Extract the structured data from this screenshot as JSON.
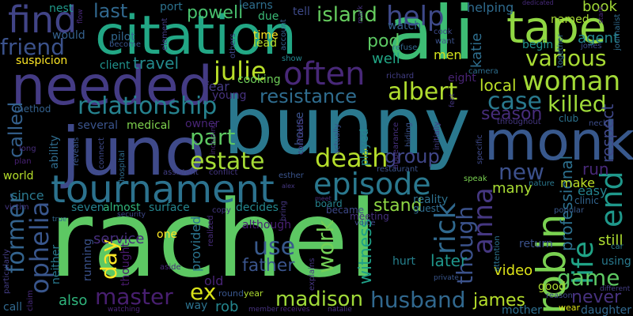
{
  "words": [
    {
      "text": "rachel",
      "color": "#5dc863"
    },
    {
      "text": "bunny",
      "color": "#2a788e"
    },
    {
      "text": "ali",
      "color": "#3dbc74"
    },
    {
      "text": "citation",
      "color": "#22a785"
    },
    {
      "text": "needed",
      "color": "#443b84"
    },
    {
      "text": "juno",
      "color": "#3f4a8a"
    },
    {
      "text": "monk",
      "color": "#38588c"
    },
    {
      "text": "tape",
      "color": "#90d743"
    },
    {
      "text": "tournament",
      "color": "#2c728e"
    },
    {
      "text": "robin",
      "color": "#7ad151"
    },
    {
      "text": "episode",
      "color": "#2a788e"
    },
    {
      "text": "woman",
      "color": "#a2da37"
    },
    {
      "text": "often",
      "color": "#482878"
    },
    {
      "text": "relationship",
      "color": "#26828e"
    },
    {
      "text": "find",
      "color": "#414487"
    },
    {
      "text": "death",
      "color": "#b5de2b"
    },
    {
      "text": "estate",
      "color": "#a5db36"
    },
    {
      "text": "end",
      "color": "#1f988b"
    },
    {
      "text": "life",
      "color": "#20a386"
    },
    {
      "text": "husband",
      "color": "#31688e"
    },
    {
      "text": "madison",
      "color": "#a0da39"
    },
    {
      "text": "master",
      "color": "#481f70"
    },
    {
      "text": "ophelia",
      "color": "#39568c"
    },
    {
      "text": "former",
      "color": "#33638d"
    },
    {
      "text": "killed",
      "color": "#9fda3a"
    },
    {
      "text": "case",
      "color": "#29798e"
    },
    {
      "text": "game",
      "color": "#5ec962"
    },
    {
      "text": "julie",
      "color": "#b8de29"
    },
    {
      "text": "albert",
      "color": "#b0dd2f"
    },
    {
      "text": "various",
      "color": "#a8db34"
    },
    {
      "text": "friend",
      "color": "#3b528b"
    },
    {
      "text": "resistance",
      "color": "#2f6c8e"
    },
    {
      "text": "anna",
      "color": "#453781"
    },
    {
      "text": "rick",
      "color": "#30698e"
    },
    {
      "text": "island",
      "color": "#65cb5e"
    },
    {
      "text": "help",
      "color": "#3e4989"
    },
    {
      "text": "part",
      "color": "#5ec962"
    },
    {
      "text": "group",
      "color": "#404688"
    },
    {
      "text": "new",
      "color": "#3c508b"
    },
    {
      "text": "work",
      "color": "#73d056"
    },
    {
      "text": "use",
      "color": "#38598c"
    },
    {
      "text": "father",
      "color": "#3a548c"
    },
    {
      "text": "day",
      "color": "#fde725"
    },
    {
      "text": "james",
      "color": "#b5de2b"
    },
    {
      "text": "ex",
      "color": "#d8e219"
    },
    {
      "text": "though",
      "color": "#3b528b"
    },
    {
      "text": "called",
      "color": "#34608d"
    },
    {
      "text": "witness",
      "color": "#1fa088"
    },
    {
      "text": "never",
      "color": "#46317e"
    },
    {
      "text": "professional",
      "color": "#2d708e"
    },
    {
      "text": "respect",
      "color": "#3f4889"
    },
    {
      "text": "season",
      "color": "#472d7b"
    },
    {
      "text": "last",
      "color": "#31688e"
    },
    {
      "text": "powell",
      "color": "#48c16e"
    },
    {
      "text": "travel",
      "color": "#238a8d"
    },
    {
      "text": "local",
      "color": "#bade28"
    },
    {
      "text": "run",
      "color": "#482979"
    },
    {
      "text": "stand",
      "color": "#8fd744"
    },
    {
      "text": "later",
      "color": "#1f968b"
    },
    {
      "text": "many",
      "color": "#a8db34"
    },
    {
      "text": "video",
      "color": "#dde318"
    },
    {
      "text": "still",
      "color": "#addc30"
    },
    {
      "text": "service",
      "color": "#472e7c"
    },
    {
      "text": "also",
      "color": "#2fb47c"
    },
    {
      "text": "rob",
      "color": "#24868e"
    },
    {
      "text": "old",
      "color": "#482475"
    },
    {
      "text": "pod",
      "color": "#5cc863"
    },
    {
      "text": "well",
      "color": "#21a685"
    },
    {
      "text": "men",
      "color": "#d2e21b"
    },
    {
      "text": "book",
      "color": "#a2da37"
    },
    {
      "text": "agent",
      "color": "#24878e"
    },
    {
      "text": "katie",
      "color": "#2e6e8e"
    },
    {
      "text": "helping",
      "color": "#2f6b8e"
    },
    {
      "text": "would",
      "color": "#34618d"
    },
    {
      "text": "pilot",
      "color": "#31678e"
    },
    {
      "text": "suspicion",
      "color": "#fde725"
    },
    {
      "text": "client",
      "color": "#20928c"
    },
    {
      "text": "cooking",
      "color": "#6ece58"
    },
    {
      "text": "young",
      "color": "#46327e"
    },
    {
      "text": "fear",
      "color": "#443a83"
    },
    {
      "text": "eight",
      "color": "#482374"
    },
    {
      "text": "time",
      "color": "#fde725"
    },
    {
      "text": "lead",
      "color": "#bade28"
    },
    {
      "text": "due",
      "color": "#3aba76"
    },
    {
      "text": "learns",
      "color": "#2e6e8e"
    },
    {
      "text": "nest",
      "color": "#1f9a8a"
    },
    {
      "text": "port",
      "color": "#2c728e"
    },
    {
      "text": "tell",
      "color": "#3e4a89"
    },
    {
      "text": "watch",
      "color": "#34618d"
    },
    {
      "text": "begin",
      "color": "#21918c"
    },
    {
      "text": "named",
      "color": "#a8db34"
    },
    {
      "text": "make",
      "color": "#bddf26"
    },
    {
      "text": "easy",
      "color": "#25838e"
    },
    {
      "text": "clinic",
      "color": "#32648e"
    },
    {
      "text": "several",
      "color": "#3a548c"
    },
    {
      "text": "medical",
      "color": "#7fd34e"
    },
    {
      "text": "owner",
      "color": "#482475"
    },
    {
      "text": "seven",
      "color": "#26818e"
    },
    {
      "text": "almost",
      "color": "#31b57b"
    },
    {
      "text": "surface",
      "color": "#25858e"
    },
    {
      "text": "decides",
      "color": "#24878e"
    },
    {
      "text": "reality",
      "color": "#2d718e"
    },
    {
      "text": "guest",
      "color": "#2f6c8e"
    },
    {
      "text": "meeting",
      "color": "#46307e"
    },
    {
      "text": "since",
      "color": "#2a788e"
    },
    {
      "text": "world",
      "color": "#b5de2b"
    },
    {
      "text": "ability",
      "color": "#2f6c8e"
    },
    {
      "text": "neither",
      "color": "#29798e"
    },
    {
      "text": "provided",
      "color": "#2b748e"
    },
    {
      "text": "although",
      "color": "#482173"
    },
    {
      "text": "thought",
      "color": "#481a6c"
    },
    {
      "text": "running",
      "color": "#3b528b"
    },
    {
      "text": "one",
      "color": "#fde725"
    },
    {
      "text": "house",
      "color": "#3b528b"
    },
    {
      "text": "played",
      "color": "#24868e"
    },
    {
      "text": "board",
      "color": "#26828e"
    },
    {
      "text": "became",
      "color": "#3e4989"
    },
    {
      "text": "hurt",
      "color": "#26818e"
    },
    {
      "text": "return",
      "color": "#3b528b"
    },
    {
      "text": "using",
      "color": "#297a8e"
    },
    {
      "text": "good",
      "color": "#addc30"
    },
    {
      "text": "mother",
      "color": "#2e6e8e"
    },
    {
      "text": "daughter",
      "color": "#31688e"
    },
    {
      "text": "way",
      "color": "#2c728e"
    },
    {
      "text": "call",
      "color": "#31688e"
    },
    {
      "text": "round",
      "color": "#39568c"
    },
    {
      "text": "year",
      "color": "#addc30"
    },
    {
      "text": "wear",
      "color": "#dde318"
    },
    {
      "text": "journalist",
      "color": "#2f6c8e"
    },
    {
      "text": "method",
      "color": "#34618d"
    },
    {
      "text": "assistant",
      "color": "#433e85"
    },
    {
      "text": "conflict",
      "color": "#453781"
    },
    {
      "text": "esther",
      "color": "#3a548c"
    },
    {
      "text": "restaurant",
      "color": "#3b528b"
    },
    {
      "text": "speak",
      "color": "#7ad151"
    },
    {
      "text": "nature",
      "color": "#2a788e"
    },
    {
      "text": "popular",
      "color": "#38598c"
    },
    {
      "text": "club",
      "color": "#2c728e"
    },
    {
      "text": "neck",
      "color": "#3d4e8a"
    },
    {
      "text": "car",
      "color": "#297a8e"
    },
    {
      "text": "jones",
      "color": "#3e4989"
    },
    {
      "text": "show",
      "color": "#24868e"
    },
    {
      "text": "camera",
      "color": "#2e6e8e"
    },
    {
      "text": "richard",
      "color": "#433e85"
    },
    {
      "text": "refuse",
      "color": "#31688e"
    },
    {
      "text": "cook",
      "color": "#3e4989"
    },
    {
      "text": "want",
      "color": "#3b528b"
    },
    {
      "text": "account",
      "color": "#34608d"
    },
    {
      "text": "become",
      "color": "#39568c"
    },
    {
      "text": "element",
      "color": "#433e85"
    },
    {
      "text": "others",
      "color": "#3f4788"
    },
    {
      "text": "plan",
      "color": "#482173"
    },
    {
      "text": "long",
      "color": "#472d7b"
    },
    {
      "text": "victim",
      "color": "#453581"
    },
    {
      "text": "particularly",
      "color": "#433d84"
    },
    {
      "text": "claim",
      "color": "#472a7a"
    },
    {
      "text": "true",
      "color": "#31688e"
    },
    {
      "text": "security",
      "color": "#3e4989"
    },
    {
      "text": "copy",
      "color": "#443983"
    },
    {
      "text": "realized",
      "color": "#472c7a"
    },
    {
      "text": "aside",
      "color": "#482878"
    },
    {
      "text": "member",
      "color": "#46327e"
    },
    {
      "text": "receives",
      "color": "#482475"
    },
    {
      "text": "natalie",
      "color": "#46307e"
    },
    {
      "text": "watching",
      "color": "#482475"
    },
    {
      "text": "explains",
      "color": "#453581"
    },
    {
      "text": "reason",
      "color": "#3e4989"
    },
    {
      "text": "private",
      "color": "#39568c"
    },
    {
      "text": "different",
      "color": "#433e85"
    },
    {
      "text": "meet",
      "color": "#472d7b"
    },
    {
      "text": "voice",
      "color": "#3f4788"
    },
    {
      "text": "bring",
      "color": "#453781"
    },
    {
      "text": "actually",
      "color": "#3b528b"
    },
    {
      "text": "reveals",
      "color": "#39568c"
    },
    {
      "text": "connect",
      "color": "#3e4989"
    },
    {
      "text": "hospital",
      "color": "#2f6c8e"
    },
    {
      "text": "including",
      "color": "#482878"
    },
    {
      "text": "confronts",
      "color": "#453581"
    },
    {
      "text": "appearance",
      "color": "#46307e"
    },
    {
      "text": "hiding",
      "color": "#3b528b"
    },
    {
      "text": "initially",
      "color": "#433e85"
    },
    {
      "text": "specific",
      "color": "#3e4989"
    },
    {
      "text": "throughout",
      "color": "#453781"
    },
    {
      "text": "together",
      "color": "#31688e"
    },
    {
      "text": "dedicated",
      "color": "#472a7a"
    },
    {
      "text": "stark",
      "color": "#482475"
    },
    {
      "text": "feet",
      "color": "#453581"
    },
    {
      "text": "attention",
      "color": "#2c728e"
    },
    {
      "text": "mark",
      "color": "#46327e"
    },
    {
      "text": "flow",
      "color": "#482878"
    },
    {
      "text": "alex",
      "color": "#453781"
    }
  ]
}
